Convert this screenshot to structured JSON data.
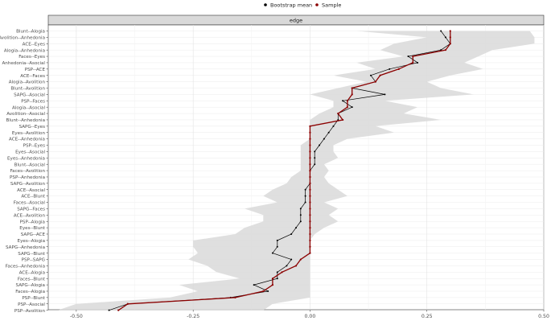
{
  "chart_data": {
    "type": "line",
    "legend": {
      "position": "top",
      "entries": [
        {
          "label": "Bootstrap mean",
          "color": "#000000"
        },
        {
          "label": "Sample",
          "color": "#8b0000"
        }
      ]
    },
    "facet_label": "edge",
    "xlim": [
      -0.56,
      0.5
    ],
    "x_ticks": [
      -0.5,
      -0.25,
      0.0,
      0.25,
      0.5
    ],
    "x_tick_labels": [
      "-0.50",
      "-0.25",
      "0.00",
      "0.25",
      "0.50"
    ],
    "grid": true,
    "band_color": "#d9d9d9",
    "edges": [
      "Blunt--Alogia",
      "Avolition--Anhedonia",
      "ACE--Eyes",
      "Alogia--Anhedonia",
      "Faces--Eyes",
      "Anhedonia--Asocial",
      "PSP--ACE",
      "ACE--Faces",
      "Alogia--Avolition",
      "Blunt--Avolition",
      "SAPG--Asocial",
      "PSP--Faces",
      "Alogia--Asocial",
      "Avolition--Asocial",
      "Blunt--Anhedonia",
      "SAPG--Eyes",
      "Eyes--Avolition",
      "ACE--Anhedonia",
      "PSP--Eyes",
      "Eyes--Asocial",
      "Eyes--Anhedonia",
      "Blunt--Asocial",
      "Faces--Avolition",
      "PSP--Anhedonia",
      "SAPG--Avolition",
      "ACE--Asocial",
      "ACE--Blunt",
      "Faces--Asocial",
      "SAPG--Faces",
      "ACE--Avolition",
      "PSP--Alogia",
      "Eyes--Blunt",
      "SAPG--ACE",
      "Eyes--Alogia",
      "SAPG--Anhedonia",
      "SAPG--Blunt",
      "PSP--SAPG",
      "Faces--Anhedonia",
      "ACE--Alogia",
      "Faces--Blunt",
      "SAPG--Alogia",
      "Faces--Alogia",
      "PSP--Blunt",
      "PSP--Asocial",
      "PSP--Avolition"
    ],
    "series": [
      {
        "name": "Sample",
        "values": [
          0.3,
          0.3,
          0.3,
          0.29,
          0.22,
          0.22,
          0.19,
          0.15,
          0.14,
          0.09,
          0.09,
          0.08,
          0.08,
          0.06,
          0.07,
          0.0,
          0.0,
          0.0,
          0.0,
          0.0,
          0.0,
          0.0,
          0.0,
          0.0,
          0.0,
          0.0,
          0.0,
          0.0,
          0.0,
          0.0,
          0.0,
          0.0,
          0.0,
          0.0,
          0.0,
          0.0,
          -0.02,
          -0.03,
          -0.06,
          -0.08,
          -0.08,
          -0.1,
          -0.16,
          -0.39,
          -0.41
        ]
      },
      {
        "name": "Bootstrap mean",
        "values": [
          0.28,
          0.29,
          0.3,
          0.28,
          0.21,
          0.23,
          0.17,
          0.13,
          0.14,
          0.09,
          0.16,
          0.07,
          0.09,
          0.06,
          0.06,
          0.05,
          0.04,
          0.03,
          0.02,
          0.01,
          0.01,
          0.01,
          0.0,
          0.0,
          0.0,
          -0.01,
          -0.01,
          -0.01,
          -0.02,
          -0.02,
          -0.02,
          -0.03,
          -0.04,
          -0.07,
          -0.07,
          -0.08,
          -0.04,
          -0.05,
          -0.07,
          -0.07,
          -0.12,
          -0.09,
          -0.17,
          -0.39,
          -0.43
        ]
      }
    ],
    "ci_band": {
      "lower": [
        0.1,
        0.25,
        0.18,
        0.15,
        0.2,
        0.1,
        0.14,
        0.05,
        0.12,
        0.06,
        0.0,
        0.05,
        0.05,
        0.02,
        0.0,
        0.0,
        0.0,
        0.0,
        -0.02,
        -0.02,
        -0.02,
        -0.02,
        -0.02,
        -0.04,
        -0.05,
        -0.08,
        -0.1,
        -0.07,
        -0.14,
        -0.1,
        -0.1,
        -0.14,
        -0.16,
        -0.25,
        -0.25,
        -0.24,
        -0.26,
        -0.22,
        -0.2,
        -0.15,
        -0.28,
        -0.24,
        -0.3,
        -0.5,
        -0.54
      ],
      "upper": [
        0.47,
        0.48,
        0.48,
        0.39,
        0.36,
        0.33,
        0.37,
        0.3,
        0.25,
        0.28,
        0.35,
        0.16,
        0.23,
        0.2,
        0.28,
        0.14,
        0.18,
        0.08,
        0.05,
        0.05,
        0.06,
        0.03,
        0.04,
        0.03,
        0.04,
        0.06,
        0.08,
        0.03,
        0.06,
        0.04,
        0.06,
        0.03,
        0.01,
        0.0,
        0.0,
        0.0,
        0.0,
        0.0,
        0.0,
        0.0,
        0.0,
        0.0,
        0.0,
        -0.08,
        -0.1
      ]
    }
  }
}
